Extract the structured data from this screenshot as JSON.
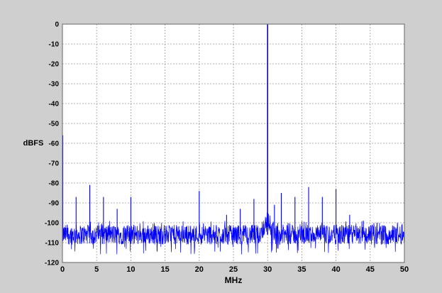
{
  "chart_data": {
    "type": "line",
    "title": "",
    "xlabel": "MHz",
    "ylabel": "dBFS",
    "xlim": [
      0,
      50
    ],
    "ylim": [
      -120,
      0
    ],
    "x_ticks": [
      0,
      5,
      10,
      15,
      20,
      25,
      30,
      35,
      40,
      45,
      50
    ],
    "y_ticks": [
      0,
      -10,
      -20,
      -30,
      -40,
      -50,
      -60,
      -70,
      -80,
      -90,
      -100,
      -110,
      -120
    ],
    "grid": true,
    "grid_style": "dotted",
    "colors": {
      "series": "#0000ff",
      "background": "#cfcfcf",
      "plot_area": "#ffffff",
      "grid": "#9a9a9a"
    },
    "series": [
      {
        "noise_floor_dbfs": {
          "mean": -106,
          "upper_envelope": -102,
          "lower_envelope": -112
        },
        "peaks": [
          {
            "x": 0.05,
            "y": -56
          },
          {
            "x": 2,
            "y": -87
          },
          {
            "x": 4,
            "y": -81
          },
          {
            "x": 6,
            "y": -87
          },
          {
            "x": 8,
            "y": -93
          },
          {
            "x": 10,
            "y": -87
          },
          {
            "x": 20,
            "y": -84
          },
          {
            "x": 24,
            "y": -96
          },
          {
            "x": 26,
            "y": -93
          },
          {
            "x": 28,
            "y": -88
          },
          {
            "x": 30,
            "y": 0
          },
          {
            "x": 31,
            "y": -91
          },
          {
            "x": 32,
            "y": -85
          },
          {
            "x": 34,
            "y": -87
          },
          {
            "x": 36,
            "y": -82
          },
          {
            "x": 38,
            "y": -87
          },
          {
            "x": 40,
            "y": -83
          },
          {
            "x": 42,
            "y": -96
          },
          {
            "x": 44,
            "y": -99
          },
          {
            "x": 46,
            "y": -100
          }
        ]
      }
    ]
  }
}
